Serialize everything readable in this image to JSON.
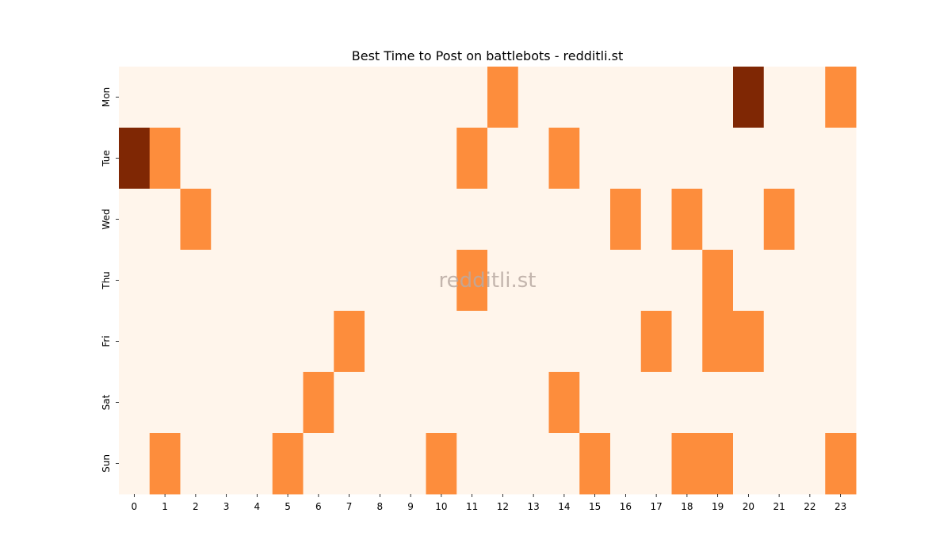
{
  "chart_data": {
    "type": "heatmap",
    "title": "Best Time to Post on battlebots - redditli.st",
    "watermark": "redditli.st",
    "x_categories": [
      "0",
      "1",
      "2",
      "3",
      "4",
      "5",
      "6",
      "7",
      "8",
      "9",
      "10",
      "11",
      "12",
      "13",
      "14",
      "15",
      "16",
      "17",
      "18",
      "19",
      "20",
      "21",
      "22",
      "23"
    ],
    "y_categories": [
      "Mon",
      "Tue",
      "Wed",
      "Thu",
      "Fri",
      "Sat",
      "Sun"
    ],
    "values": [
      [
        0,
        0,
        0,
        0,
        0,
        0,
        0,
        0,
        0,
        0,
        0,
        0,
        1,
        0,
        0,
        0,
        0,
        0,
        0,
        0,
        2,
        0,
        0,
        1
      ],
      [
        2,
        1,
        0,
        0,
        0,
        0,
        0,
        0,
        0,
        0,
        0,
        1,
        0,
        0,
        1,
        0,
        0,
        0,
        0,
        0,
        0,
        0,
        0,
        0
      ],
      [
        0,
        0,
        1,
        0,
        0,
        0,
        0,
        0,
        0,
        0,
        0,
        0,
        0,
        0,
        0,
        0,
        1,
        0,
        1,
        0,
        0,
        1,
        0,
        0
      ],
      [
        0,
        0,
        0,
        0,
        0,
        0,
        0,
        0,
        0,
        0,
        0,
        1,
        0,
        0,
        0,
        0,
        0,
        0,
        0,
        1,
        0,
        0,
        0,
        0
      ],
      [
        0,
        0,
        0,
        0,
        0,
        0,
        0,
        1,
        0,
        0,
        0,
        0,
        0,
        0,
        0,
        0,
        0,
        1,
        0,
        1,
        1,
        0,
        0,
        0
      ],
      [
        0,
        0,
        0,
        0,
        0,
        0,
        1,
        0,
        0,
        0,
        0,
        0,
        0,
        0,
        1,
        0,
        0,
        0,
        0,
        0,
        0,
        0,
        0,
        0
      ],
      [
        0,
        1,
        0,
        0,
        0,
        1,
        0,
        0,
        0,
        0,
        1,
        0,
        0,
        0,
        0,
        1,
        0,
        0,
        1,
        1,
        0,
        0,
        0,
        1
      ]
    ],
    "colors": {
      "0": "#fff5eb",
      "1": "#fd8d3c",
      "2": "#7f2704"
    },
    "colorbar": false
  }
}
